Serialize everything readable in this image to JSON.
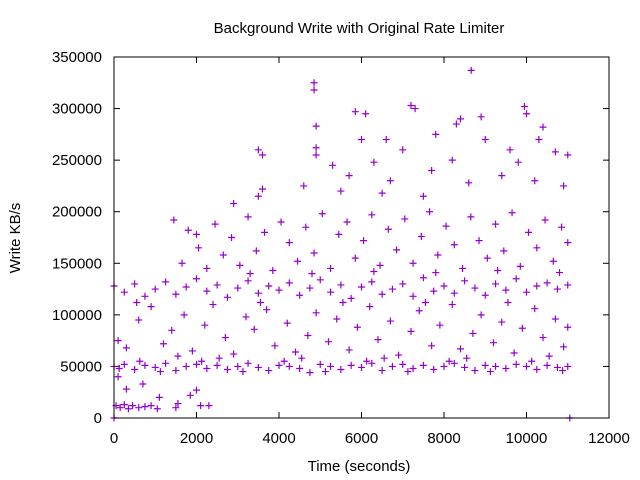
{
  "chart_data": {
    "type": "scatter",
    "title": "Background Write with Original Rate Limiter",
    "xlabel": "Time (seconds)",
    "ylabel": "Write KB/s",
    "xlim": [
      0,
      12000
    ],
    "ylim": [
      0,
      350000
    ],
    "xticks": [
      "0",
      "2000",
      "4000",
      "6000",
      "8000",
      "10000",
      "12000"
    ],
    "yticks": [
      "0",
      "50000",
      "100000",
      "150000",
      "200000",
      "250000",
      "300000",
      "350000"
    ],
    "grid": false,
    "legend": "none",
    "marker": "plus",
    "color": "#9400d3",
    "series": [
      {
        "points": [
          [
            0,
            50000
          ],
          [
            250,
            52000
          ],
          [
            500,
            47000
          ],
          [
            750,
            51000
          ],
          [
            1000,
            49000
          ],
          [
            1250,
            53000
          ],
          [
            1500,
            46000
          ],
          [
            1750,
            50000
          ],
          [
            2000,
            52000
          ],
          [
            2250,
            48000
          ],
          [
            2500,
            51000
          ],
          [
            2750,
            47000
          ],
          [
            3000,
            50000
          ],
          [
            3250,
            53000
          ],
          [
            3500,
            49000
          ],
          [
            3750,
            46000
          ],
          [
            4000,
            51000
          ],
          [
            4250,
            50000
          ],
          [
            4500,
            48000
          ],
          [
            4750,
            44000
          ],
          [
            5000,
            52000
          ],
          [
            5250,
            50000
          ],
          [
            5500,
            47000
          ],
          [
            5750,
            51000
          ],
          [
            6000,
            49000
          ],
          [
            6250,
            53000
          ],
          [
            6500,
            46000
          ],
          [
            6750,
            50000
          ],
          [
            7000,
            52000
          ],
          [
            7250,
            48000
          ],
          [
            7500,
            51000
          ],
          [
            7750,
            47000
          ],
          [
            8000,
            50000
          ],
          [
            8250,
            53000
          ],
          [
            8500,
            49000
          ],
          [
            8750,
            46000
          ],
          [
            9000,
            51000
          ],
          [
            9250,
            50000
          ],
          [
            9500,
            48000
          ],
          [
            9750,
            52000
          ],
          [
            10000,
            50000
          ],
          [
            10250,
            47000
          ],
          [
            10500,
            51000
          ],
          [
            10750,
            49000
          ],
          [
            11000,
            50000
          ],
          [
            125,
            48000
          ],
          [
            625,
            55000
          ],
          [
            1125,
            45000
          ],
          [
            2125,
            55000
          ],
          [
            3125,
            45000
          ],
          [
            4125,
            55000
          ],
          [
            5125,
            45000
          ],
          [
            6125,
            55000
          ],
          [
            7125,
            45000
          ],
          [
            8125,
            55000
          ],
          [
            9125,
            45000
          ],
          [
            10125,
            55000
          ],
          [
            10875,
            46000
          ],
          [
            0,
            128000
          ],
          [
            250,
            122000
          ],
          [
            500,
            130000
          ],
          [
            750,
            118000
          ],
          [
            1000,
            125000
          ],
          [
            1250,
            132000
          ],
          [
            1500,
            120000
          ],
          [
            1750,
            127000
          ],
          [
            2000,
            135000
          ],
          [
            2250,
            123000
          ],
          [
            2500,
            129000
          ],
          [
            2750,
            117000
          ],
          [
            3000,
            126000
          ],
          [
            3250,
            133000
          ],
          [
            3500,
            121000
          ],
          [
            3750,
            128000
          ],
          [
            4000,
            124000
          ],
          [
            4250,
            131000
          ],
          [
            4500,
            119000
          ],
          [
            4750,
            126000
          ],
          [
            5000,
            134000
          ],
          [
            5250,
            122000
          ],
          [
            5500,
            129000
          ],
          [
            5750,
            116000
          ],
          [
            6000,
            127000
          ],
          [
            6250,
            132000
          ],
          [
            6500,
            120000
          ],
          [
            6750,
            125000
          ],
          [
            7000,
            130000
          ],
          [
            7250,
            118000
          ],
          [
            7500,
            136000
          ],
          [
            7750,
            123000
          ],
          [
            8000,
            128000
          ],
          [
            8250,
            121000
          ],
          [
            8500,
            133000
          ],
          [
            8750,
            126000
          ],
          [
            9000,
            119000
          ],
          [
            9250,
            130000
          ],
          [
            9500,
            124000
          ],
          [
            9750,
            135000
          ],
          [
            10000,
            122000
          ],
          [
            10250,
            128000
          ],
          [
            10500,
            131000
          ],
          [
            10750,
            125000
          ],
          [
            11000,
            129000
          ],
          [
            100,
            75000
          ],
          [
            300,
            68000
          ],
          [
            600,
            95000
          ],
          [
            900,
            108000
          ],
          [
            1200,
            72000
          ],
          [
            1400,
            85000
          ],
          [
            1700,
            100000
          ],
          [
            1900,
            65000
          ],
          [
            2200,
            90000
          ],
          [
            2400,
            110000
          ],
          [
            2700,
            78000
          ],
          [
            2900,
            62000
          ],
          [
            3200,
            98000
          ],
          [
            3400,
            86000
          ],
          [
            3700,
            105000
          ],
          [
            3900,
            70000
          ],
          [
            4200,
            92000
          ],
          [
            4400,
            64000
          ],
          [
            4700,
            80000
          ],
          [
            4900,
            102000
          ],
          [
            5200,
            74000
          ],
          [
            5400,
            96000
          ],
          [
            5700,
            66000
          ],
          [
            5900,
            88000
          ],
          [
            6200,
            108000
          ],
          [
            6400,
            76000
          ],
          [
            6700,
            94000
          ],
          [
            6900,
            61000
          ],
          [
            7200,
            84000
          ],
          [
            7400,
            104000
          ],
          [
            7700,
            70000
          ],
          [
            7900,
            90000
          ],
          [
            8200,
            110000
          ],
          [
            8400,
            67000
          ],
          [
            8700,
            82000
          ],
          [
            8900,
            100000
          ],
          [
            9200,
            73000
          ],
          [
            9400,
            93000
          ],
          [
            9700,
            63000
          ],
          [
            9900,
            87000
          ],
          [
            10200,
            106000
          ],
          [
            10400,
            78000
          ],
          [
            10700,
            96000
          ],
          [
            10900,
            69000
          ],
          [
            11000,
            88000
          ],
          [
            550,
            112000
          ],
          [
            1550,
            60000
          ],
          [
            2550,
            58000
          ],
          [
            3550,
            112000
          ],
          [
            4550,
            58000
          ],
          [
            5550,
            112000
          ],
          [
            6550,
            58000
          ],
          [
            7550,
            112000
          ],
          [
            8550,
            58000
          ],
          [
            9550,
            112000
          ],
          [
            10550,
            60000
          ],
          [
            1450,
            192000
          ],
          [
            1650,
            150000
          ],
          [
            1800,
            182000
          ],
          [
            2050,
            165000
          ],
          [
            2250,
            145000
          ],
          [
            2450,
            188000
          ],
          [
            2650,
            158000
          ],
          [
            2850,
            175000
          ],
          [
            3050,
            148000
          ],
          [
            3250,
            195000
          ],
          [
            3450,
            162000
          ],
          [
            3650,
            180000
          ],
          [
            3850,
            143000
          ],
          [
            4050,
            190000
          ],
          [
            4250,
            170000
          ],
          [
            4450,
            152000
          ],
          [
            4650,
            185000
          ],
          [
            4850,
            160000
          ],
          [
            5050,
            198000
          ],
          [
            5250,
            145000
          ],
          [
            5450,
            178000
          ],
          [
            5650,
            190000
          ],
          [
            5850,
            155000
          ],
          [
            6050,
            172000
          ],
          [
            6250,
            197000
          ],
          [
            6450,
            148000
          ],
          [
            6650,
            183000
          ],
          [
            6850,
            163000
          ],
          [
            7050,
            193000
          ],
          [
            7250,
            150000
          ],
          [
            7450,
            176000
          ],
          [
            7650,
            200000
          ],
          [
            7850,
            158000
          ],
          [
            8050,
            186000
          ],
          [
            8250,
            168000
          ],
          [
            8450,
            145000
          ],
          [
            8650,
            195000
          ],
          [
            8850,
            172000
          ],
          [
            9050,
            155000
          ],
          [
            9250,
            188000
          ],
          [
            9450,
            162000
          ],
          [
            9650,
            199000
          ],
          [
            9850,
            147000
          ],
          [
            10050,
            180000
          ],
          [
            10250,
            165000
          ],
          [
            10450,
            192000
          ],
          [
            10650,
            152000
          ],
          [
            10850,
            185000
          ],
          [
            11000,
            170000
          ],
          [
            2000,
            178000
          ],
          [
            3300,
            140000
          ],
          [
            4800,
            140000
          ],
          [
            6300,
            142000
          ],
          [
            7800,
            141000
          ],
          [
            9300,
            143000
          ],
          [
            10800,
            141000
          ],
          [
            8660,
            337000
          ],
          [
            4850,
            325000
          ],
          [
            4850,
            318000
          ],
          [
            4900,
            283000
          ],
          [
            7200,
            303000
          ],
          [
            7300,
            300000
          ],
          [
            9950,
            302000
          ],
          [
            10000,
            295000
          ],
          [
            5850,
            297000
          ],
          [
            6100,
            295000
          ],
          [
            6600,
            270000
          ],
          [
            3500,
            260000
          ],
          [
            3600,
            255000
          ],
          [
            3600,
            222000
          ],
          [
            2900,
            208000
          ],
          [
            4900,
            262000
          ],
          [
            4900,
            255000
          ],
          [
            5300,
            245000
          ],
          [
            4600,
            225000
          ],
          [
            6300,
            248000
          ],
          [
            8300,
            285000
          ],
          [
            8400,
            290000
          ],
          [
            8900,
            292000
          ],
          [
            10400,
            282000
          ],
          [
            10300,
            270000
          ],
          [
            10700,
            258000
          ],
          [
            11000,
            255000
          ],
          [
            9000,
            270000
          ],
          [
            7800,
            275000
          ],
          [
            7700,
            240000
          ],
          [
            8200,
            250000
          ],
          [
            9400,
            235000
          ],
          [
            9800,
            248000
          ],
          [
            5500,
            220000
          ],
          [
            6700,
            230000
          ],
          [
            7000,
            260000
          ],
          [
            10200,
            230000
          ],
          [
            10900,
            225000
          ],
          [
            5700,
            235000
          ],
          [
            6500,
            218000
          ],
          [
            8600,
            228000
          ],
          [
            9600,
            260000
          ],
          [
            6000,
            270000
          ],
          [
            7500,
            215000
          ],
          [
            3500,
            215000
          ],
          [
            0,
            0
          ],
          [
            11050,
            0
          ],
          [
            50,
            12000
          ],
          [
            150,
            10000
          ],
          [
            250,
            13000
          ],
          [
            350,
            9000
          ],
          [
            450,
            12000
          ],
          [
            600,
            10000
          ],
          [
            750,
            11000
          ],
          [
            900,
            12000
          ],
          [
            1050,
            9000
          ],
          [
            1500,
            10000
          ],
          [
            1550,
            14000
          ],
          [
            2100,
            12000
          ],
          [
            2300,
            12000
          ],
          [
            1850,
            22000
          ],
          [
            2000,
            27000
          ],
          [
            300,
            28000
          ],
          [
            700,
            33000
          ],
          [
            1100,
            20000
          ],
          [
            100,
            40000
          ]
        ]
      }
    ]
  }
}
